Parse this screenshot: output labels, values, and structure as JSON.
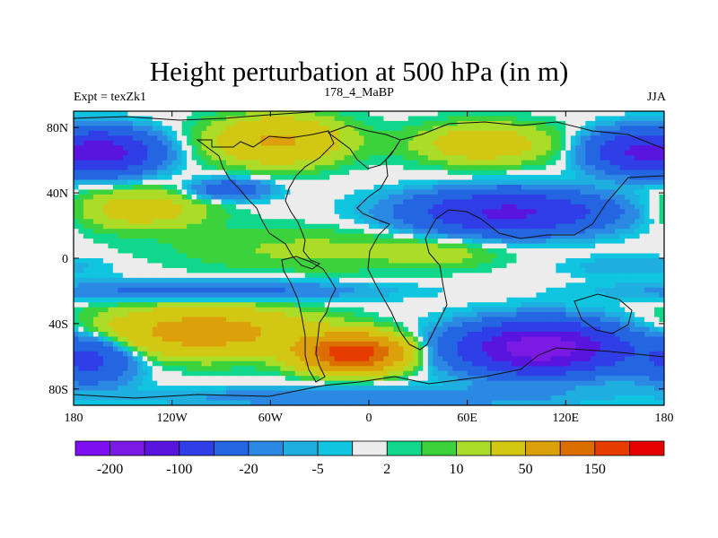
{
  "title": "Height perturbation at 500 hPa (in m)",
  "subtitle_left": "Expt = texZk1",
  "subtitle_center": "178_4_MaBP",
  "subtitle_right": "JJA",
  "chart_data": {
    "type": "heatmap",
    "title": "Height perturbation at 500 hPa (in m)",
    "xlabel": "",
    "ylabel": "",
    "xlim": [
      -180,
      180
    ],
    "ylim": [
      -90,
      90
    ],
    "x_ticks": [
      {
        "value": -180,
        "label": "180"
      },
      {
        "value": -120,
        "label": "120W"
      },
      {
        "value": -60,
        "label": "60W"
      },
      {
        "value": 0,
        "label": "0"
      },
      {
        "value": 60,
        "label": "60E"
      },
      {
        "value": 120,
        "label": "120E"
      },
      {
        "value": 180,
        "label": "180"
      }
    ],
    "y_ticks": [
      {
        "value": 80,
        "label": "80N"
      },
      {
        "value": 40,
        "label": "40N"
      },
      {
        "value": 0,
        "label": "0"
      },
      {
        "value": -40,
        "label": "40S"
      },
      {
        "value": -80,
        "label": "80S"
      }
    ],
    "colorbar": {
      "colors": [
        "#7d0ff0",
        "#7a1ae3",
        "#5a14e0",
        "#2f3ee6",
        "#2465e2",
        "#2b89e3",
        "#1eaee0",
        "#10c5e0",
        "#ececec",
        "#10d78c",
        "#3cd23c",
        "#aadc28",
        "#d2c814",
        "#dca00a",
        "#dc6e00",
        "#e63c00",
        "#e60000"
      ],
      "labels": [
        {
          "label": "-200",
          "index": 1
        },
        {
          "label": "-100",
          "index": 3
        },
        {
          "label": "-20",
          "index": 5
        },
        {
          "label": "-5",
          "index": 7
        },
        {
          "label": "2",
          "index": 9
        },
        {
          "label": "10",
          "index": 11
        },
        {
          "label": "50",
          "index": 13
        },
        {
          "label": "150",
          "index": 15
        }
      ]
    },
    "features": [
      {
        "name": "north-pacific-trough",
        "lon": -160,
        "lat": 65,
        "value": -120,
        "rlon": 28,
        "rlat": 12
      },
      {
        "name": "north-atlantic-high",
        "lon": -55,
        "lat": 72,
        "value": 55,
        "rlon": 38,
        "rlat": 14
      },
      {
        "name": "arctic-europe-high",
        "lon": 70,
        "lat": 70,
        "value": 35,
        "rlon": 40,
        "rlat": 12
      },
      {
        "name": "east-asia-trough",
        "lon": 160,
        "lat": 65,
        "value": -90,
        "rlon": 25,
        "rlat": 12
      },
      {
        "name": "north-american-trough",
        "lon": -85,
        "lat": 42,
        "value": -40,
        "rlon": 22,
        "rlat": 6
      },
      {
        "name": "eurasian-trough",
        "lon": 85,
        "lat": 28,
        "value": -110,
        "rlon": 55,
        "rlat": 12
      },
      {
        "name": "subtropical-atlantic-high",
        "lon": -30,
        "lat": 5,
        "value": 12,
        "rlon": 90,
        "rlat": 14
      },
      {
        "name": "north-pacific-high",
        "lon": -140,
        "lat": 30,
        "value": 30,
        "rlon": 40,
        "rlat": 12
      },
      {
        "name": "african-high",
        "lon": 45,
        "lat": 3,
        "value": 10,
        "rlon": 30,
        "rlat": 8
      },
      {
        "name": "pacific-tropical-low",
        "lon": 160,
        "lat": -5,
        "value": -10,
        "rlon": 40,
        "rlat": 6
      },
      {
        "name": "south-pacific-high",
        "lon": -100,
        "lat": -45,
        "value": 70,
        "rlon": 60,
        "rlat": 14
      },
      {
        "name": "south-atlantic-high",
        "lon": -10,
        "lat": -58,
        "value": 190,
        "rlon": 28,
        "rlat": 10
      },
      {
        "name": "indian-ocean-trough",
        "lon": 105,
        "lat": -55,
        "value": -190,
        "rlon": 45,
        "rlat": 14
      },
      {
        "name": "southern-pacific-trough",
        "lon": -170,
        "lat": -62,
        "value": -60,
        "rlon": 25,
        "rlat": 14
      },
      {
        "name": "south-equatorial-trough",
        "lon": -100,
        "lat": -20,
        "value": -30,
        "rlon": 90,
        "rlat": 6
      },
      {
        "name": "subpolar-south-trough",
        "lon": 0,
        "lat": -85,
        "value": -20,
        "rlon": 120,
        "rlat": 6
      }
    ]
  }
}
